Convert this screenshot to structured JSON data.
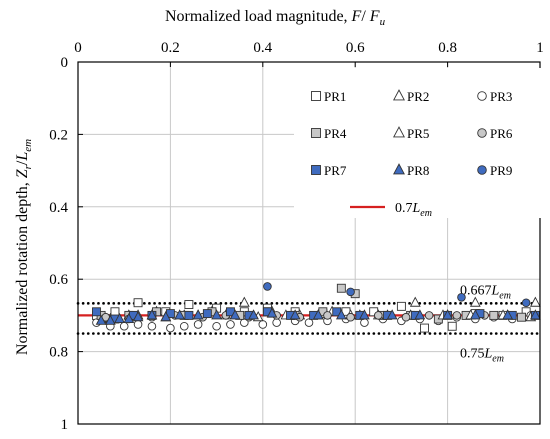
{
  "chart_data": {
    "type": "scatter",
    "xlabel": "Normalized load magnitude, F/ F_u",
    "xlabel_parts": {
      "text": "Normalized load magnitude,",
      "var1": "F",
      "slash": "/ ",
      "var2": "F",
      "var2_sub": "u"
    },
    "ylabel": "Normalized rotation depth, Z_r/L_em",
    "ylabel_parts": {
      "text": "Normalized rotation depth,",
      "var1": "Z",
      "var1_sub": "r",
      "slash": "/",
      "var2": "L",
      "var2_sub": "em"
    },
    "xlim": [
      0,
      1
    ],
    "ylim": [
      0,
      1
    ],
    "y_inverted": true,
    "x_axis_position": "top",
    "x_ticks": [
      "0",
      "0.2",
      "0.4",
      "0.6",
      "0.8",
      "1"
    ],
    "y_ticks": [
      "0",
      "0.2",
      "0.4",
      "0.6",
      "0.8",
      "1"
    ],
    "x_tick_values": [
      0,
      0.2,
      0.4,
      0.6,
      0.8,
      1
    ],
    "y_tick_values": [
      0,
      0.2,
      0.4,
      0.6,
      0.8,
      1
    ],
    "grid": true,
    "legend_position": "top-right",
    "series": [
      {
        "name": "PR1",
        "marker": "square",
        "fill": "#ffffff",
        "x": [
          0.04,
          0.08,
          0.13,
          0.19,
          0.24,
          0.3,
          0.36,
          0.41,
          0.47,
          0.53,
          0.58,
          0.64,
          0.7,
          0.75,
          0.81,
          0.86,
          0.92,
          0.97
        ],
        "y": [
          0.7,
          0.69,
          0.665,
          0.69,
          0.67,
          0.68,
          0.69,
          0.68,
          0.69,
          0.695,
          0.69,
          0.69,
          0.675,
          0.735,
          0.73,
          0.695,
          0.7,
          0.69
        ]
      },
      {
        "name": "PR2",
        "marker": "triangle",
        "fill": "#ffffff",
        "x": [
          0.05,
          0.11,
          0.17,
          0.23,
          0.29,
          0.36,
          0.42,
          0.48,
          0.55,
          0.61,
          0.67,
          0.73,
          0.8,
          0.86,
          0.93,
          0.99
        ],
        "y": [
          0.71,
          0.7,
          0.69,
          0.7,
          0.69,
          0.665,
          0.69,
          0.7,
          0.69,
          0.7,
          0.7,
          0.665,
          0.7,
          0.665,
          0.7,
          0.665
        ]
      },
      {
        "name": "PR3",
        "marker": "circle",
        "fill": "#ffffff",
        "x": [
          0.04,
          0.07,
          0.1,
          0.13,
          0.16,
          0.2,
          0.23,
          0.26,
          0.3,
          0.33,
          0.36,
          0.4,
          0.43,
          0.47,
          0.5,
          0.54,
          0.58,
          0.62,
          0.66,
          0.7,
          0.74,
          0.78,
          0.82,
          0.86,
          0.9,
          0.94,
          0.98
        ],
        "y": [
          0.72,
          0.73,
          0.73,
          0.725,
          0.73,
          0.735,
          0.73,
          0.725,
          0.73,
          0.725,
          0.72,
          0.725,
          0.72,
          0.715,
          0.72,
          0.715,
          0.71,
          0.72,
          0.71,
          0.715,
          0.71,
          0.715,
          0.705,
          0.71,
          0.705,
          0.71,
          0.7
        ]
      },
      {
        "name": "PR4",
        "marker": "square",
        "fill": "#c8c8c8",
        "x": [
          0.05,
          0.11,
          0.17,
          0.23,
          0.29,
          0.35,
          0.41,
          0.47,
          0.53,
          0.57,
          0.6,
          0.66,
          0.72,
          0.78,
          0.84,
          0.9,
          0.96
        ],
        "y": [
          0.7,
          0.7,
          0.69,
          0.7,
          0.69,
          0.7,
          0.69,
          0.7,
          0.69,
          0.625,
          0.64,
          0.7,
          0.7,
          0.71,
          0.7,
          0.7,
          0.705
        ]
      },
      {
        "name": "PR5",
        "marker": "triangle",
        "fill": "#ffffff",
        "x": [
          0.07,
          0.13,
          0.19,
          0.26,
          0.32,
          0.39,
          0.45,
          0.52,
          0.59,
          0.65,
          0.72,
          0.79,
          0.85,
          0.92,
          0.98
        ],
        "y": [
          0.71,
          0.7,
          0.705,
          0.7,
          0.7,
          0.705,
          0.7,
          0.7,
          0.7,
          0.7,
          0.7,
          0.7,
          0.7,
          0.7,
          0.705
        ]
      },
      {
        "name": "PR6",
        "marker": "circle",
        "fill": "#c8c8c8",
        "x": [
          0.06,
          0.11,
          0.16,
          0.21,
          0.27,
          0.32,
          0.37,
          0.43,
          0.48,
          0.54,
          0.59,
          0.65,
          0.71,
          0.76,
          0.82,
          0.88,
          0.94
        ],
        "y": [
          0.705,
          0.71,
          0.705,
          0.7,
          0.705,
          0.7,
          0.705,
          0.7,
          0.705,
          0.7,
          0.705,
          0.7,
          0.705,
          0.7,
          0.7,
          0.7,
          0.7
        ]
      },
      {
        "name": "PR7",
        "marker": "square",
        "fill": "#3f6bbf",
        "x": [
          0.04,
          0.08,
          0.12,
          0.16,
          0.2,
          0.24,
          0.28,
          0.33,
          0.37,
          0.41,
          0.46,
          0.51,
          0.56,
          0.61,
          0.67,
          0.73,
          0.8,
          0.87,
          0.94,
          0.99
        ],
        "y": [
          0.69,
          0.71,
          0.7,
          0.7,
          0.695,
          0.7,
          0.695,
          0.69,
          0.7,
          0.69,
          0.7,
          0.7,
          0.69,
          0.7,
          0.7,
          0.7,
          0.7,
          0.695,
          0.7,
          0.7
        ]
      },
      {
        "name": "PR8",
        "marker": "triangle",
        "fill": "#3f6bbf",
        "x": [
          0.05,
          0.07,
          0.09,
          0.11,
          0.13,
          0.16,
          0.19,
          0.22,
          0.26,
          0.3,
          0.34,
          0.38,
          0.42,
          0.47,
          0.52,
          0.57,
          0.62,
          0.68,
          0.74,
          0.8,
          0.86,
          0.93,
          0.99
        ],
        "y": [
          0.715,
          0.715,
          0.71,
          0.71,
          0.705,
          0.7,
          0.705,
          0.7,
          0.7,
          0.7,
          0.7,
          0.7,
          0.695,
          0.7,
          0.7,
          0.7,
          0.7,
          0.7,
          0.7,
          0.7,
          0.7,
          0.7,
          0.7
        ]
      },
      {
        "name": "PR9",
        "marker": "circle",
        "fill": "#3f6bbf",
        "x": [
          0.41,
          0.59,
          0.83,
          0.97
        ],
        "y": [
          0.62,
          0.635,
          0.65,
          0.665
        ]
      }
    ],
    "reference_lines": [
      {
        "name": "0.7L_em",
        "label": "0.7",
        "label_var": "L",
        "label_sub": "em",
        "y": 0.7,
        "style": "solid",
        "color": "#d62020",
        "in_legend": true
      },
      {
        "name": "0.667L_em",
        "label": "0.667",
        "label_var": "L",
        "label_sub": "em",
        "y": 0.6667,
        "style": "dotted",
        "color": "#000000",
        "label_position": "above-right"
      },
      {
        "name": "0.75L_em",
        "label": "0.75",
        "label_var": "L",
        "label_sub": "em",
        "y": 0.75,
        "style": "dotted",
        "color": "#000000",
        "label_position": "below-right"
      }
    ]
  }
}
